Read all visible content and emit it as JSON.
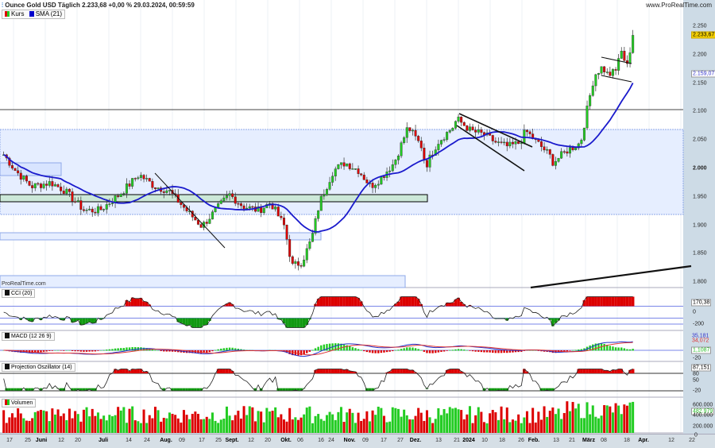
{
  "header": {
    "title": "Ounce Gold USD Täglich 2.233,68 +0,00 % 29.03.2024, 00:59:59",
    "site": "www.ProRealTime.com",
    "watermark": "ProRealTime.com"
  },
  "legend": [
    {
      "label": "Kurs",
      "color": "#d00000"
    },
    {
      "label": "SMA (21)",
      "color": "#0000cc"
    }
  ],
  "colors": {
    "up": "#22cc22",
    "down": "#dd0000",
    "sma": "#1a1acc",
    "zone": "#e6eeff",
    "zone_border": "#8fa8e8",
    "green_zone": "#cce8d8",
    "axis_bg": "#cddbe6"
  },
  "price_axis": {
    "ticks": [
      "2.250",
      "2.200",
      "2.150",
      "2.100",
      "2.050",
      "2.000",
      "1.950",
      "1.900",
      "1.850",
      "1.800"
    ],
    "last_price": "2.233,67",
    "sma_value": "2.159,07"
  },
  "panels": {
    "cci": {
      "label": "CCI (20)",
      "value": "170,38",
      "ticks": [
        "0",
        "-200"
      ]
    },
    "macd": {
      "label": "MACD (12 26 9)",
      "macd": "35,181",
      "signal": "34,072",
      "hist": "1,1087",
      "ticks": [
        "-20"
      ]
    },
    "proj": {
      "label": "Projection Oszillator (14)",
      "value": "87,151",
      "ticks": [
        "80",
        "50",
        "-20"
      ]
    },
    "volume": {
      "label": "Volumen",
      "value": "482.979",
      "ticks": [
        "600.000",
        "400.000",
        "200.000",
        "0"
      ]
    }
  },
  "x_axis": [
    {
      "t": "17"
    },
    {
      "t": "25"
    },
    {
      "t": "Juni",
      "b": true
    },
    {
      "t": "12"
    },
    {
      "t": "20"
    },
    {
      "t": "Juli",
      "b": true
    },
    {
      "t": "14"
    },
    {
      "t": "24"
    },
    {
      "t": "Aug.",
      "b": true
    },
    {
      "t": "09"
    },
    {
      "t": "17"
    },
    {
      "t": "25"
    },
    {
      "t": "Sept.",
      "b": true
    },
    {
      "t": "12"
    },
    {
      "t": "20"
    },
    {
      "t": "Okt.",
      "b": true
    },
    {
      "t": "06"
    },
    {
      "t": "16"
    },
    {
      "t": "24"
    },
    {
      "t": "Nov.",
      "b": true
    },
    {
      "t": "09"
    },
    {
      "t": "17"
    },
    {
      "t": "27"
    },
    {
      "t": "Dez.",
      "b": true
    },
    {
      "t": "13"
    },
    {
      "t": "21"
    },
    {
      "t": "2024",
      "b": true
    },
    {
      "t": "10"
    },
    {
      "t": "18"
    },
    {
      "t": "26"
    },
    {
      "t": "Feb.",
      "b": true
    },
    {
      "t": "13"
    },
    {
      "t": "21"
    },
    {
      "t": "März",
      "b": true
    },
    {
      "t": "08"
    },
    {
      "t": "18"
    },
    {
      "t": "Apr.",
      "b": true
    },
    {
      "t": "12"
    },
    {
      "t": "22"
    }
  ],
  "chart_data": {
    "type": "candlestick",
    "ylim": [
      1800,
      2250
    ],
    "sma_period": 21,
    "closes": [
      [
        "2023-05-12",
        2024
      ],
      [
        "2023-05-18",
        1996
      ],
      [
        "2023-05-26",
        1968
      ],
      [
        "2023-06-05",
        1975
      ],
      [
        "2023-06-12",
        1961
      ],
      [
        "2023-06-22",
        1926
      ],
      [
        "2023-06-30",
        1926
      ],
      [
        "2023-07-10",
        1954
      ],
      [
        "2023-07-20",
        1989
      ],
      [
        "2023-07-28",
        1968
      ],
      [
        "2023-08-04",
        1961
      ],
      [
        "2023-08-15",
        1919
      ],
      [
        "2023-08-21",
        1898
      ],
      [
        "2023-08-28",
        1926
      ],
      [
        "2023-09-04",
        1954
      ],
      [
        "2023-09-11",
        1933
      ],
      [
        "2023-09-19",
        1926
      ],
      [
        "2023-09-25",
        1940
      ],
      [
        "2023-10-02",
        1898
      ],
      [
        "2023-10-06",
        1828
      ],
      [
        "2023-10-11",
        1835
      ],
      [
        "2023-10-16",
        1877
      ],
      [
        "2023-10-20",
        1940
      ],
      [
        "2023-10-27",
        1996
      ],
      [
        "2023-11-02",
        2010
      ],
      [
        "2023-11-09",
        1996
      ],
      [
        "2023-11-15",
        1968
      ],
      [
        "2023-11-20",
        1982
      ],
      [
        "2023-11-27",
        2010
      ],
      [
        "2023-12-01",
        2045
      ],
      [
        "2023-12-04",
        2073
      ],
      [
        "2023-12-11",
        2038
      ],
      [
        "2023-12-13",
        2003
      ],
      [
        "2023-12-19",
        2045
      ],
      [
        "2023-12-27",
        2073
      ],
      [
        "2023-12-29",
        2087
      ],
      [
        "2024-01-05",
        2066
      ],
      [
        "2024-01-12",
        2059
      ],
      [
        "2024-01-18",
        2045
      ],
      [
        "2024-01-24",
        2038
      ],
      [
        "2024-01-30",
        2045
      ],
      [
        "2024-02-02",
        2066
      ],
      [
        "2024-02-08",
        2045
      ],
      [
        "2024-02-14",
        2024
      ],
      [
        "2024-02-16",
        2010
      ],
      [
        "2024-02-23",
        2031
      ],
      [
        "2024-03-01",
        2045
      ],
      [
        "2024-03-05",
        2115
      ],
      [
        "2024-03-08",
        2164
      ],
      [
        "2024-03-12",
        2178
      ],
      [
        "2024-03-15",
        2164
      ],
      [
        "2024-03-19",
        2171
      ],
      [
        "2024-03-21",
        2206
      ],
      [
        "2024-03-25",
        2185
      ],
      [
        "2024-03-28",
        2234
      ]
    ]
  }
}
